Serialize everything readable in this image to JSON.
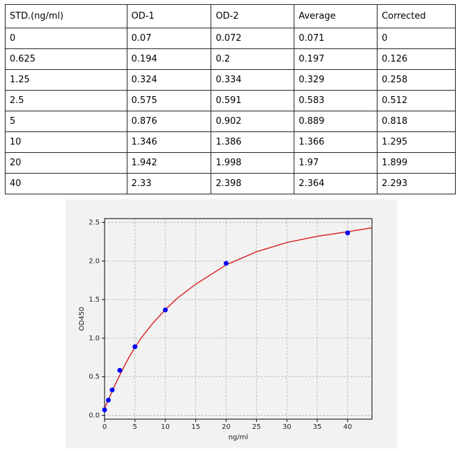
{
  "table": {
    "header": [
      "STD.(ng/ml)",
      "OD-1",
      "OD-2",
      "Average",
      "Corrected"
    ],
    "rows": [
      [
        "0",
        "0.07",
        "0.072",
        "0.071",
        "0"
      ],
      [
        "0.625",
        "0.194",
        "0.2",
        "0.197",
        "0.126"
      ],
      [
        "1.25",
        "0.324",
        "0.334",
        "0.329",
        "0.258"
      ],
      [
        "2.5",
        "0.575",
        "0.591",
        "0.583",
        "0.512"
      ],
      [
        "5",
        "0.876",
        "0.902",
        "0.889",
        "0.818"
      ],
      [
        "10",
        "1.346",
        "1.386",
        "1.366",
        "1.295"
      ],
      [
        "20",
        "1.942",
        "1.998",
        "1.97",
        "1.899"
      ],
      [
        "40",
        "2.33",
        "2.398",
        "2.364",
        "2.293"
      ]
    ]
  },
  "chart_data": {
    "type": "scatter",
    "x_label": "ng/ml",
    "y_label": "OD450",
    "points": {
      "x": [
        0,
        0.625,
        1.25,
        2.5,
        5,
        10,
        20,
        40
      ],
      "values": [
        0.071,
        0.197,
        0.329,
        0.583,
        0.889,
        1.366,
        1.97,
        2.364
      ],
      "color": "#0000ff"
    },
    "fit": {
      "x": [
        0,
        1,
        2,
        3,
        4,
        5,
        6,
        8,
        10,
        12,
        15,
        20,
        25,
        30,
        35,
        40,
        44
      ],
      "values": [
        0.09,
        0.27,
        0.44,
        0.6,
        0.75,
        0.88,
        1.0,
        1.2,
        1.37,
        1.52,
        1.7,
        1.95,
        2.12,
        2.24,
        2.32,
        2.38,
        2.43
      ],
      "color": "#d62728"
    },
    "xlim": [
      0,
      44
    ],
    "ylim": [
      -0.05,
      2.55
    ],
    "xticks": [
      0,
      5,
      10,
      15,
      20,
      25,
      30,
      35,
      40
    ],
    "yticks": [
      {
        "value": 0,
        "label": "0.0"
      },
      0.5,
      {
        "value": 1,
        "label": "1.0"
      },
      1.5,
      {
        "value": 2,
        "label": "2.0"
      },
      2.5
    ],
    "grid": true
  }
}
